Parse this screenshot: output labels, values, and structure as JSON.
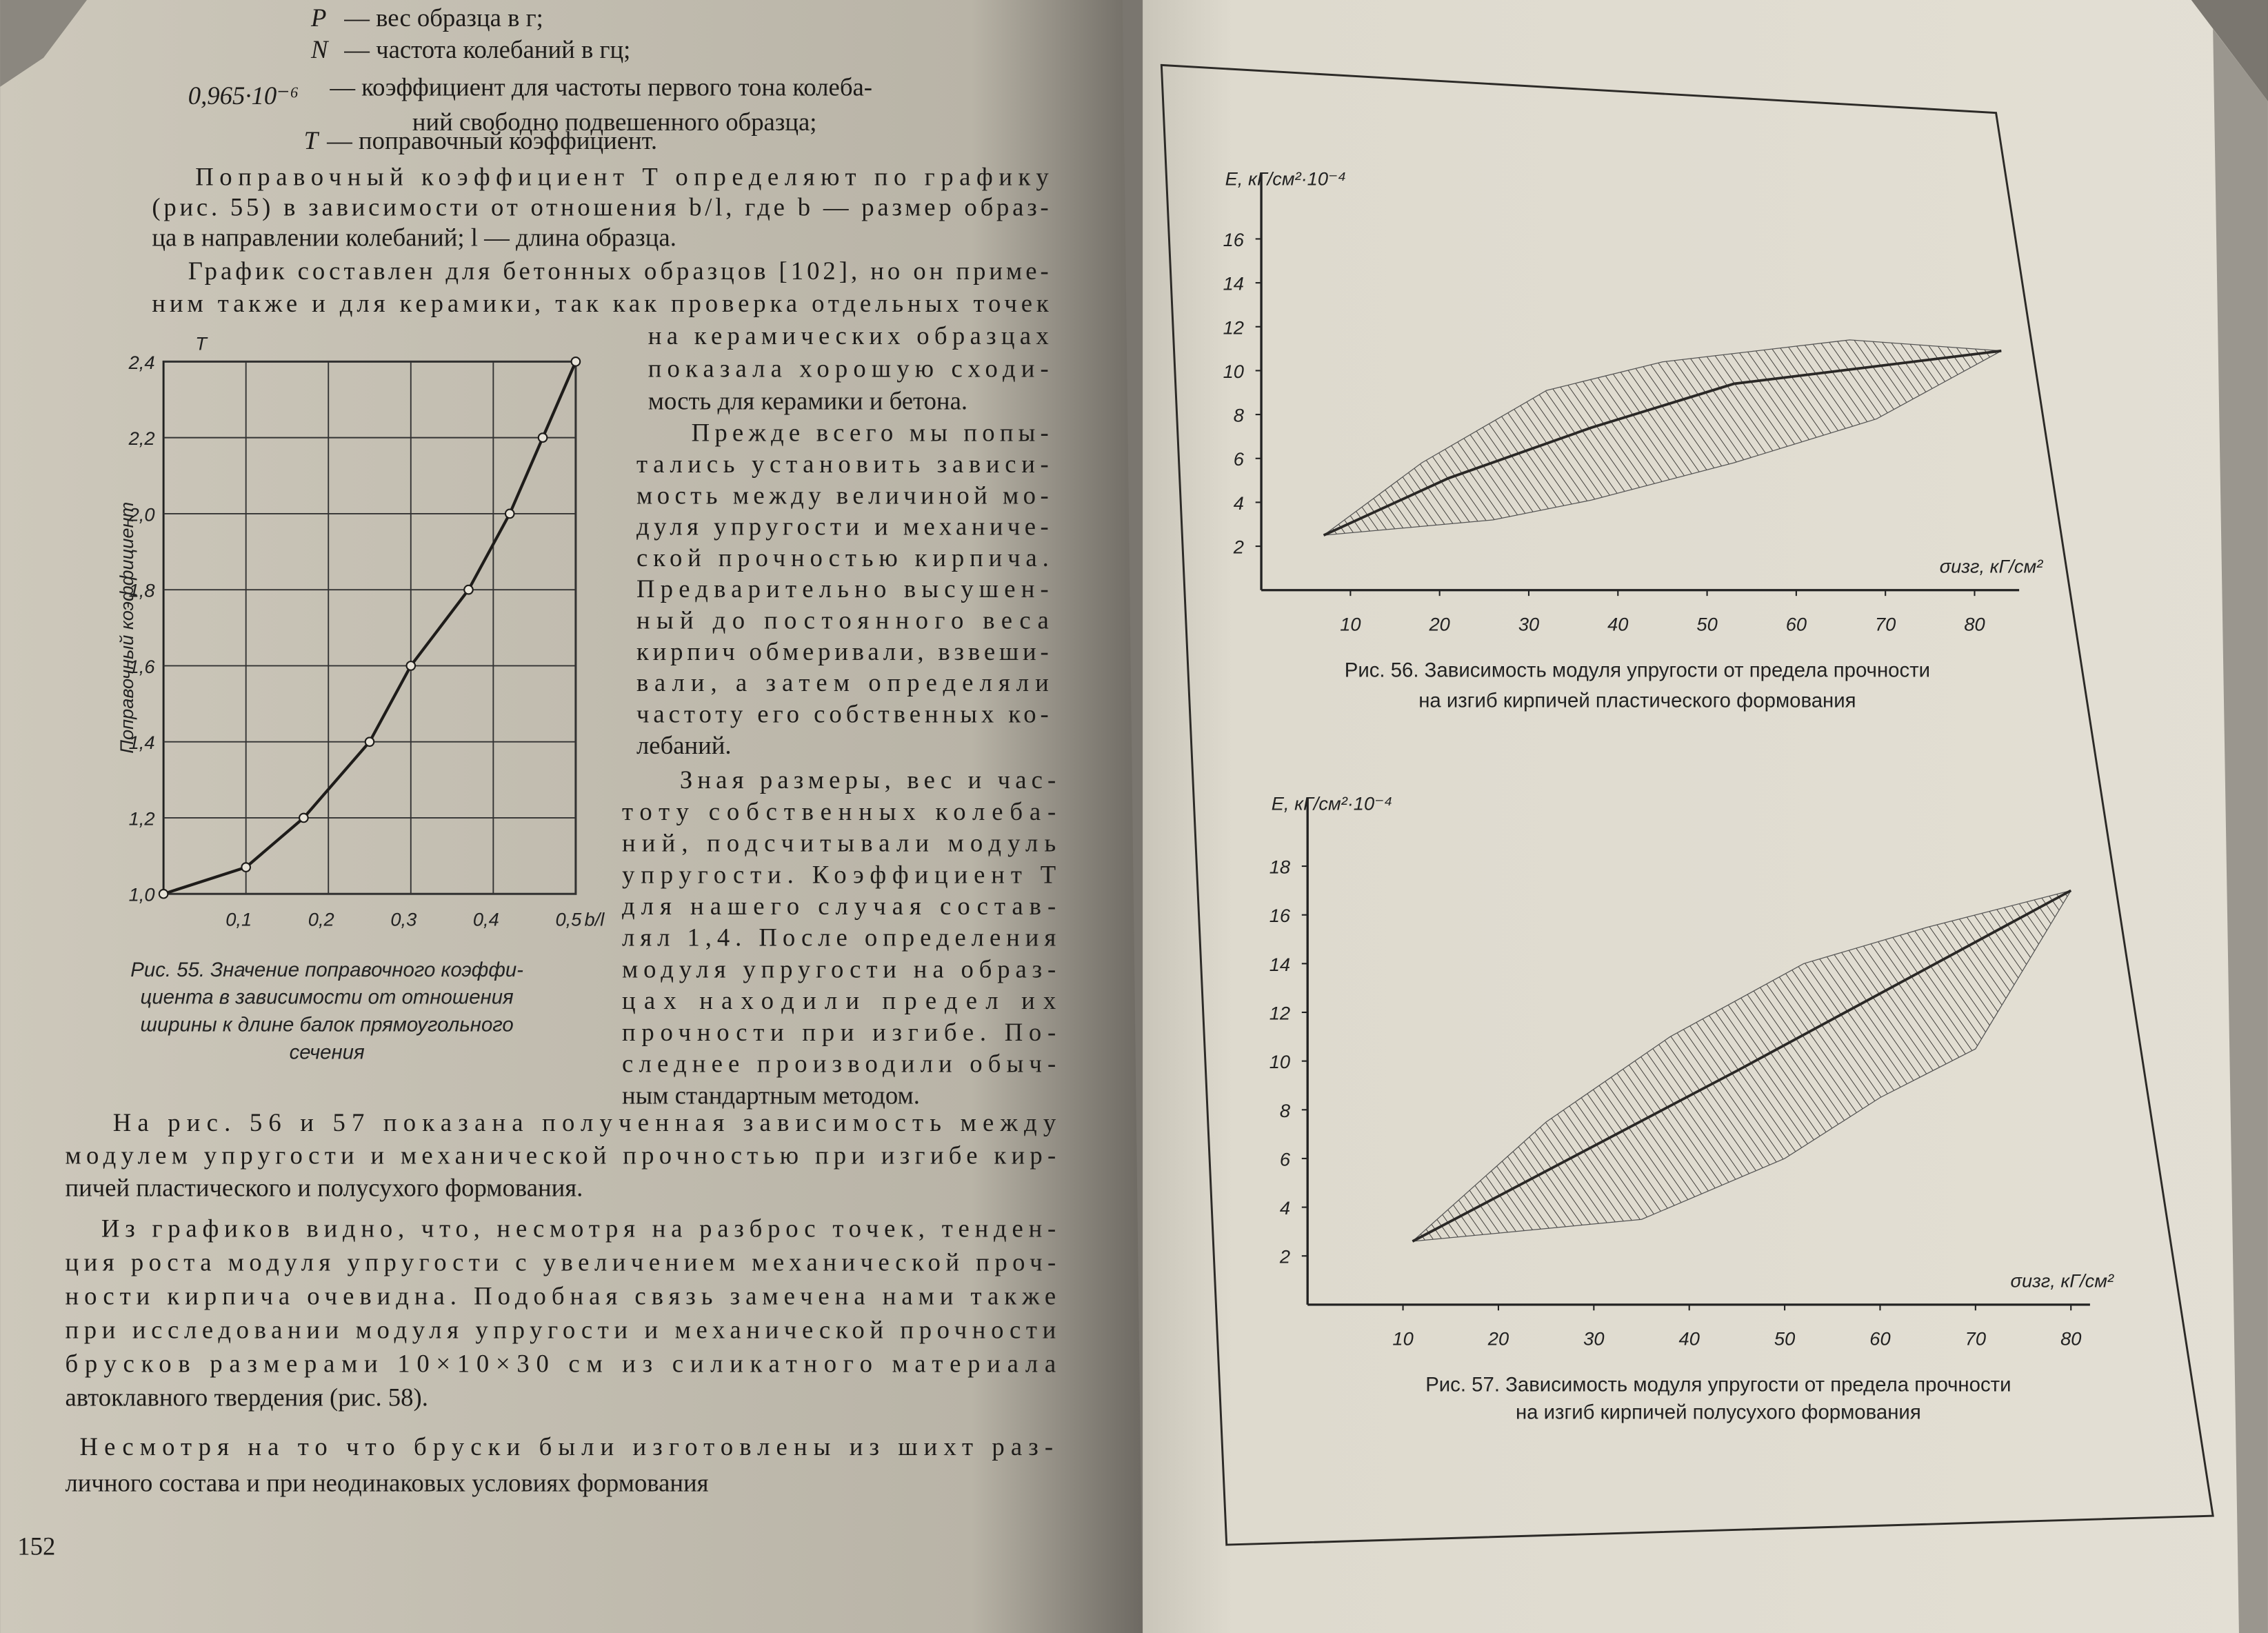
{
  "left_page": {
    "definitions": [
      {
        "symbol": "P",
        "text": "— вес образца в г;"
      },
      {
        "symbol": "N",
        "text": "— частота колебаний в гц;"
      },
      {
        "symbol": "0,965·10⁻⁶",
        "text": "— коэффициент для частоты первого тона колеба-",
        "continuation": "ний свободно подвешенного образца;"
      },
      {
        "symbol": "T",
        "text": "— поправочный коэффициент."
      }
    ],
    "paragraphs": [
      {
        "lines": [
          "Поправочный коэффициент T определяют по графику",
          "(рис. 55) в зависимости от отношения b/l, где b — размер образ-",
          "ца в направлении колебаний; l — длина образца."
        ]
      },
      {
        "lines": [
          "График составлен для бетонных образцов [102], но он приме-",
          "ним также и для керамики, так как проверка отдельных точек",
          "на керамических образцах",
          "показала хорошую сходи-",
          "мость для керамики и бетона."
        ]
      },
      {
        "lines": [
          "Прежде всего мы попы-",
          "тались установить зависи-",
          "мость между величиной мо-",
          "дуля упругости и механиче-",
          "ской прочностью кирпича.",
          "Предварительно высушен-",
          "ный до постоянного веса",
          "кирпич обмеривали, взвеши-",
          "вали, а затем определяли",
          "частоту его собственных ко-",
          "лебаний."
        ]
      },
      {
        "lines": [
          "Зная размеры, вес и час-",
          "тоту собственных колеба-",
          "ний, подсчитывали модуль",
          "упругости. Коэффициент T",
          "для нашего случая состав-",
          "лял 1,4. После определения",
          "модуля упругости на образ-",
          "цах находили предел их",
          "прочности при изгибе. По-",
          "следнее производили обыч-",
          "ным стандартным методом."
        ]
      },
      {
        "lines": [
          "На рис. 56 и 57 показана полученная зависимость между",
          "модулем упругости и механической прочностью при изгибе кир-",
          "пичей пластического и полусухого формования."
        ]
      },
      {
        "lines": [
          "Из графиков видно, что, несмотря на разброс точек, тенден-",
          "ция роста модуля упругости с увеличением механической проч-",
          "ности кирпича очевидна. Подобная связь замечена нами также",
          "при исследовании модуля упругости и механической прочности",
          "брусков размерами 10×10×30 см из силикатного материала",
          "автоклавного твердения (рис. 58)."
        ]
      },
      {
        "lines": [
          "Несмотря на то что бруски были изготовлены из шихт раз-",
          "личного состава и при неодинаковых условиях формования"
        ]
      }
    ],
    "figure_55": {
      "type": "line",
      "y_symbol": "T",
      "ylabel": "Поправочный коэффициент",
      "xlabel": "b/l",
      "x": [
        0,
        0.1,
        0.17,
        0.25,
        0.3,
        0.37,
        0.42,
        0.46,
        0.5
      ],
      "values": [
        1.0,
        1.07,
        1.2,
        1.4,
        1.6,
        1.8,
        2.0,
        2.2,
        2.4
      ],
      "xlim": [
        0,
        0.5
      ],
      "xticks": [
        {
          "value": 0.1,
          "label": "0,1"
        },
        {
          "value": 0.2,
          "label": "0,2"
        },
        {
          "value": 0.3,
          "label": "0,3"
        },
        {
          "value": 0.4,
          "label": "0,4"
        },
        {
          "value": 0.5,
          "label": "0,5"
        }
      ],
      "ylim": [
        1.0,
        2.4
      ],
      "yticks": [
        {
          "value": 1.0,
          "label": "1,0"
        },
        {
          "value": 1.2,
          "label": "1,2"
        },
        {
          "value": 1.4,
          "label": "1,4"
        },
        {
          "value": 1.6,
          "label": "1,6"
        },
        {
          "value": 1.8,
          "label": "1,8"
        },
        {
          "value": 2.0,
          "label": "2,0"
        },
        {
          "value": 2.2,
          "label": "2,2"
        },
        {
          "value": 2.4,
          "label": "2,4"
        }
      ],
      "grid": true,
      "color": "#1e1c1a",
      "caption": [
        "Рис. 55. Значение поправочного коэффи-",
        "циента в зависимости от отношения",
        "ширины к длине балок прямоугольного",
        "сечения"
      ]
    },
    "page_number": "152"
  },
  "right_page": {
    "figure_56": {
      "type": "band",
      "ylabel": "E, кГ/см²·10⁻⁴",
      "xlabel": "σизг, кГ/см²",
      "xlim": [
        0,
        85
      ],
      "xticks": [
        10,
        20,
        30,
        40,
        50,
        60,
        70,
        80
      ],
      "ylim": [
        0,
        17
      ],
      "yticks": [
        2,
        4,
        6,
        8,
        10,
        12,
        14,
        16
      ],
      "trend": {
        "x": [
          7,
          21,
          37,
          53,
          83
        ],
        "y": [
          2.5,
          5.1,
          7.4,
          9.4,
          10.9
        ]
      },
      "band_upper": {
        "x": [
          7,
          18,
          32,
          45,
          66,
          83
        ],
        "y": [
          2.5,
          5.8,
          9.1,
          10.4,
          11.4,
          10.9
        ]
      },
      "band_lower": {
        "x": [
          7,
          26,
          37,
          53,
          69,
          83
        ],
        "y": [
          2.5,
          3.2,
          4.1,
          5.8,
          7.8,
          10.9
        ]
      },
      "color": "#2a2826",
      "caption": [
        "Рис. 56. Зависимость модуля упругости от предела прочности",
        "на изгиб кирпичей пластического формования"
      ]
    },
    "figure_57": {
      "type": "band",
      "ylabel": "E, кГ/см²·10⁻⁴",
      "xlabel": "σизг, кГ/см²",
      "xlim": [
        0,
        82
      ],
      "xticks": [
        10,
        20,
        30,
        40,
        50,
        60,
        70,
        80
      ],
      "ylim": [
        0,
        19
      ],
      "yticks": [
        2,
        4,
        6,
        8,
        10,
        12,
        14,
        16,
        18
      ],
      "trend": {
        "x": [
          11,
          45,
          80
        ],
        "y": [
          2.6,
          9.6,
          17
        ]
      },
      "band_upper": {
        "x": [
          11,
          25,
          38,
          52,
          65,
          80
        ],
        "y": [
          2.6,
          7.5,
          11,
          14,
          15.5,
          17
        ]
      },
      "band_lower": {
        "x": [
          11,
          35,
          50,
          60,
          70,
          80
        ],
        "y": [
          2.6,
          3.5,
          6,
          8.5,
          10.5,
          17
        ]
      },
      "color": "#2a2826",
      "caption": [
        "Рис. 57. Зависимость модуля упругости от предела прочности",
        "на изгиб кирпичей полусухого формования"
      ]
    }
  }
}
